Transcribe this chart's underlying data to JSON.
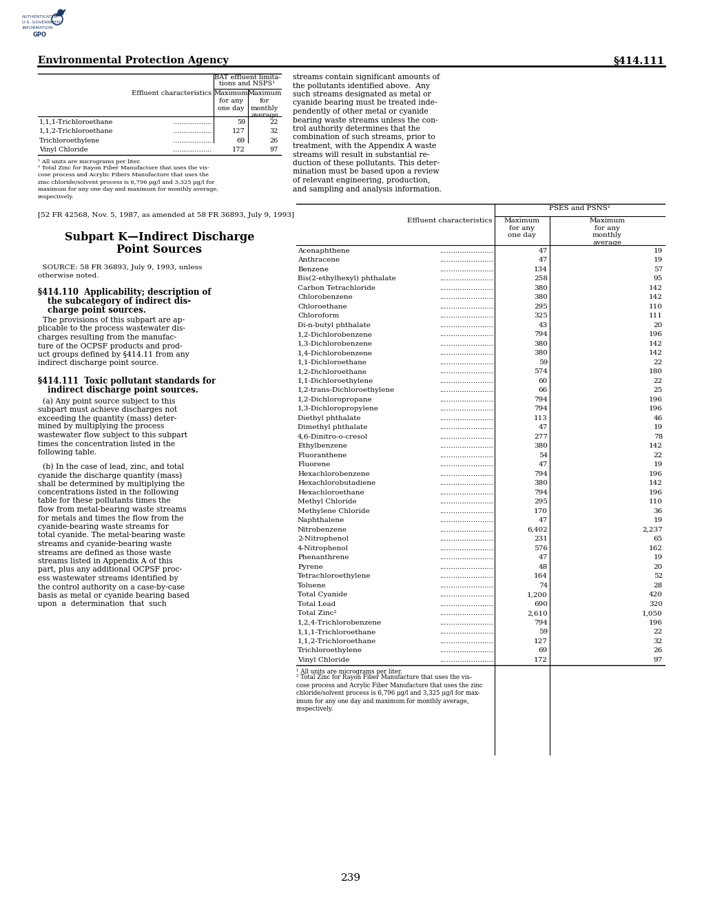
{
  "page_bg": "#ffffff",
  "header_left": "Environmental Protection Agency",
  "header_right": "§414.111",
  "footer_page": "239",
  "top_table": {
    "rows": [
      [
        "1,1,1-Trichloroethane",
        "59",
        "22"
      ],
      [
        "1,1,2-Trichloroethane",
        "127",
        "32"
      ],
      [
        "Trichloroethylene",
        "69",
        "26"
      ],
      [
        "Vinyl Chloride",
        "172",
        "97"
      ]
    ]
  },
  "citation_top": "[52 FR 42568, Nov. 5, 1987, as amended at 58 FR 36893, July 9, 1993]",
  "bottom_table": {
    "rows": [
      [
        "Acenaphthene",
        "47",
        "19"
      ],
      [
        "Anthracene",
        "47",
        "19"
      ],
      [
        "Benzene",
        "134",
        "57"
      ],
      [
        "Bis(2-ethylhexyl) phthalate",
        "258",
        "95"
      ],
      [
        "Carbon Tetrachloride",
        "380",
        "142"
      ],
      [
        "Chlorobenzene",
        "380",
        "142"
      ],
      [
        "Chloroethane",
        "295",
        "110"
      ],
      [
        "Chloroform",
        "325",
        "111"
      ],
      [
        "Di-n-butyl phthalate",
        "43",
        "20"
      ],
      [
        "1,2-Dichlorobenzene",
        "794",
        "196"
      ],
      [
        "1,3-Dichlorobenzene",
        "380",
        "142"
      ],
      [
        "1,4-Dichlorobenzene",
        "380",
        "142"
      ],
      [
        "1,1-Dichloroethane",
        "59",
        "22"
      ],
      [
        "1,2-Dichloroethane",
        "574",
        "180"
      ],
      [
        "1,1-Dichloroethylene",
        "60",
        "22"
      ],
      [
        "1,2-trans-Dichloroethylene",
        "66",
        "25"
      ],
      [
        "1,2-Dichloropropane",
        "794",
        "196"
      ],
      [
        "1,3-Dichloropropylene",
        "794",
        "196"
      ],
      [
        "Diethyl phthalate",
        "113",
        "46"
      ],
      [
        "Dimethyl phthalate",
        "47",
        "19"
      ],
      [
        "4,6-Dinitro-o-cresol",
        "277",
        "78"
      ],
      [
        "Ethylbenzene",
        "380",
        "142"
      ],
      [
        "Fluoranthene",
        "54",
        "22"
      ],
      [
        "Fluorene",
        "47",
        "19"
      ],
      [
        "Hexachlorobenzene",
        "794",
        "196"
      ],
      [
        "Hexachlorobutadiene",
        "380",
        "142"
      ],
      [
        "Hexachloroethane",
        "794",
        "196"
      ],
      [
        "Methyl Chloride",
        "295",
        "110"
      ],
      [
        "Methylene Chloride",
        "170",
        "36"
      ],
      [
        "Naphthalene",
        "47",
        "19"
      ],
      [
        "Nitrobenzene",
        "6,402",
        "2,237"
      ],
      [
        "2-Nitrophenol",
        "231",
        "65"
      ],
      [
        "4-Nitrophenol",
        "576",
        "162"
      ],
      [
        "Phenanthrene",
        "47",
        "19"
      ],
      [
        "Pyrene",
        "48",
        "20"
      ],
      [
        "Tetrachloroethylene",
        "164",
        "52"
      ],
      [
        "Toluene",
        "74",
        "28"
      ],
      [
        "Total Cyanide",
        "1,200",
        "420"
      ],
      [
        "Total Lead",
        "690",
        "320"
      ],
      [
        "Total Zinc²",
        "2,610",
        "1,050"
      ],
      [
        "1,2,4-Trichlorobenzene",
        "794",
        "196"
      ],
      [
        "1,1,1-Trichloroethane",
        "59",
        "22"
      ],
      [
        "1,1,2-Trichloroethane",
        "127",
        "32"
      ],
      [
        "Trichloroethylene",
        "69",
        "26"
      ],
      [
        "Vinyl Chloride",
        "172",
        "97"
      ]
    ]
  }
}
